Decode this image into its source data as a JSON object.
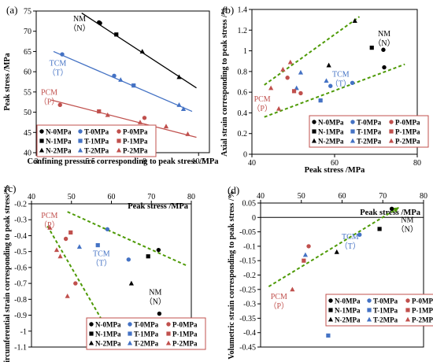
{
  "legend_labels": [
    "N-0MPa",
    "T-0MPa",
    "P-0MPa",
    "N-1MPa",
    "T-1MPa",
    "P-1MPa",
    "N-2MPa",
    "T-2MPa",
    "P-2MPa"
  ],
  "colors": {
    "N": "#000000",
    "T": "#4472c4",
    "P": "#c0504d",
    "fit_green": "#4e9a06"
  },
  "chart_data": [
    {
      "panel": "(a)",
      "type": "scatter",
      "xlabel": "Confining pressure corresponding to peak stress /MPa",
      "ylabel": "Peak stress /MPa",
      "xlim": [
        3,
        11
      ],
      "ylim": [
        40,
        75
      ],
      "xticks": [
        3,
        5.5,
        8,
        10.5
      ],
      "yticks": [
        40,
        45,
        50,
        55,
        60,
        65,
        70,
        75
      ],
      "annotations": [
        {
          "text": "NM",
          "sub": "（N）",
          "x": 5.0,
          "y": 72.5,
          "color": "#000000"
        },
        {
          "text": "TCM",
          "sub": "（T）",
          "x": 4.0,
          "y": 61.5,
          "color": "#4472c4"
        },
        {
          "text": "PCM",
          "sub": "（P）",
          "x": 3.6,
          "y": 54.3,
          "color": "#c0504d"
        }
      ],
      "fit_lines": [
        {
          "group": "N",
          "x": [
            5.1,
            10.4
          ],
          "y": [
            74.5,
            56.0
          ],
          "color": "#000000"
        },
        {
          "group": "T",
          "x": [
            3.8,
            10.2
          ],
          "y": [
            65.0,
            50.2
          ],
          "color": "#4472c4"
        },
        {
          "group": "P",
          "x": [
            3.7,
            10.4
          ],
          "y": [
            53.0,
            43.8
          ],
          "color": "#c0504d"
        }
      ],
      "series": [
        {
          "name": "N-0MPa",
          "x": [
            5.9,
            5.95
          ],
          "y": [
            72.2,
            72.0
          ]
        },
        {
          "name": "N-1MPa",
          "x": [
            6.7
          ],
          "y": [
            69.2
          ]
        },
        {
          "name": "N-2MPa",
          "x": [
            7.9,
            9.6
          ],
          "y": [
            65.0,
            58.7
          ]
        },
        {
          "name": "T-0MPa",
          "x": [
            4.2,
            6.6
          ],
          "y": [
            64.3,
            59.0
          ]
        },
        {
          "name": "T-1MPa",
          "x": [
            7.5
          ],
          "y": [
            56.6
          ]
        },
        {
          "name": "T-2MPa",
          "x": [
            6.9,
            9.6,
            9.8
          ],
          "y": [
            58.0,
            51.8,
            50.8
          ]
        },
        {
          "name": "P-0MPa",
          "x": [
            4.1,
            8.0
          ],
          "y": [
            51.8,
            48.6
          ]
        },
        {
          "name": "P-1MPa",
          "x": [
            5.9
          ],
          "y": [
            50.2
          ]
        },
        {
          "name": "P-2MPa",
          "x": [
            6.3,
            7.8,
            9.0,
            10.0
          ],
          "y": [
            49.3,
            47.5,
            46.5,
            44.6
          ]
        }
      ]
    },
    {
      "panel": "(b)",
      "type": "scatter",
      "xlabel": "Peak stress /MPa",
      "ylabel": "Axial strain corresponding to peak stress /%",
      "xlim": [
        40,
        80
      ],
      "ylim": [
        0,
        1.4
      ],
      "xticks": [
        40,
        60,
        80
      ],
      "yticks": [
        0,
        0.2,
        0.4,
        0.6,
        0.8,
        1,
        1.2,
        1.4
      ],
      "annotations": [
        {
          "text": "NM",
          "sub": "（N）",
          "x": 72,
          "y": 1.14,
          "color": "#000000"
        },
        {
          "text": "TCM",
          "sub": "（T）",
          "x": 61.5,
          "y": 0.75,
          "color": "#4472c4"
        },
        {
          "text": "PCM",
          "sub": "（P）",
          "x": 42.5,
          "y": 0.51,
          "color": "#c0504d"
        }
      ],
      "fit_lines": [
        {
          "group": "upper",
          "x": [
            43,
            66
          ],
          "y": [
            0.67,
            1.33
          ],
          "color": "#4e9a06"
        },
        {
          "group": "lower",
          "x": [
            43,
            77
          ],
          "y": [
            0.36,
            0.87
          ],
          "color": "#4e9a06"
        }
      ],
      "series": [
        {
          "name": "N-0MPa",
          "x": [
            71.8,
            72.0
          ],
          "y": [
            1.01,
            0.84
          ]
        },
        {
          "name": "N-1MPa",
          "x": [
            69.0
          ],
          "y": [
            1.03
          ]
        },
        {
          "name": "N-2MPa",
          "x": [
            58.6,
            64.9
          ],
          "y": [
            0.86,
            1.29
          ]
        },
        {
          "name": "T-0MPa",
          "x": [
            59.0,
            64.3
          ],
          "y": [
            0.66,
            0.69
          ]
        },
        {
          "name": "T-1MPa",
          "x": [
            56.6
          ],
          "y": [
            0.52
          ]
        },
        {
          "name": "T-2MPa",
          "x": [
            50.8,
            51.8,
            58.0
          ],
          "y": [
            0.64,
            0.79,
            0.71
          ]
        },
        {
          "name": "P-0MPa",
          "x": [
            48.6,
            51.8
          ],
          "y": [
            0.74,
            0.59
          ]
        },
        {
          "name": "P-1MPa",
          "x": [
            50.2
          ],
          "y": [
            0.61
          ]
        },
        {
          "name": "P-2MPa",
          "x": [
            44.6,
            46.5,
            47.5,
            49.3
          ],
          "y": [
            0.64,
            0.44,
            0.82,
            0.89
          ]
        }
      ]
    },
    {
      "panel": "(c)",
      "type": "scatter",
      "xlabel": "Peak stress /MPa",
      "ylabel": "circumferential strain corresponding to peak stress/%",
      "xlim": [
        40,
        80
      ],
      "ylim": [
        -1.1,
        -0.2
      ],
      "xaxis_position": "top",
      "xticks": [
        40,
        50,
        60,
        70,
        80
      ],
      "yticks": [
        -1.1,
        -1,
        -0.9,
        -0.8,
        -0.7,
        -0.6,
        -0.5,
        -0.4,
        -0.3,
        -0.2
      ],
      "annotations": [
        {
          "text": "NM",
          "sub": "（N）",
          "x": 71,
          "y": -0.77,
          "color": "#000000"
        },
        {
          "text": "TCM",
          "sub": "（T）",
          "x": 57.5,
          "y": -0.53,
          "color": "#4472c4"
        },
        {
          "text": "PCM",
          "sub": "（P）",
          "x": 44.5,
          "y": -0.29,
          "color": "#c0504d"
        }
      ],
      "fit_lines": [
        {
          "group": "upper",
          "x": [
            49,
            79
          ],
          "y": [
            -0.25,
            -0.59
          ],
          "color": "#4e9a06"
        },
        {
          "group": "lower",
          "x": [
            44,
            59
          ],
          "y": [
            -0.34,
            -0.99
          ],
          "color": "#4e9a06"
        }
      ],
      "series": [
        {
          "name": "N-0MPa",
          "x": [
            71.8,
            72.0
          ],
          "y": [
            -0.49,
            -0.89
          ]
        },
        {
          "name": "N-1MPa",
          "x": [
            69.2
          ],
          "y": [
            -0.53
          ]
        },
        {
          "name": "N-2MPa",
          "x": [
            58.7,
            65.0
          ],
          "y": [
            -0.99,
            -0.7
          ]
        },
        {
          "name": "T-0MPa",
          "x": [
            59.0,
            64.3
          ],
          "y": [
            -0.36,
            -0.55
          ]
        },
        {
          "name": "T-1MPa",
          "x": [
            56.6
          ],
          "y": [
            -0.46
          ]
        },
        {
          "name": "T-2MPa",
          "x": [
            52.0,
            58.0
          ],
          "y": [
            -0.47,
            -0.95
          ]
        },
        {
          "name": "P-0MPa",
          "x": [
            48.6,
            51.0
          ],
          "y": [
            -0.42,
            -0.7
          ]
        },
        {
          "name": "P-1MPa",
          "x": [
            49.8
          ],
          "y": [
            -0.38
          ]
        },
        {
          "name": "P-2MPa",
          "x": [
            44.6,
            46.3,
            47.2,
            49.0
          ],
          "y": [
            -0.35,
            -0.49,
            -0.53,
            -0.78
          ]
        }
      ]
    },
    {
      "panel": "(d)",
      "type": "scatter",
      "xlabel": "Peak stress /MPa",
      "ylabel": "Volumetric strain corresponding to peak stress /%",
      "xlim": [
        40,
        80
      ],
      "ylim": [
        -0.45,
        0.05
      ],
      "xaxis_position": "top",
      "xticks": [
        40,
        50,
        60,
        70,
        80
      ],
      "yticks": [
        -0.45,
        -0.4,
        -0.35,
        -0.3,
        -0.25,
        -0.2,
        -0.15,
        -0.1,
        -0.05,
        0,
        0.05
      ],
      "annotations": [
        {
          "text": "NM",
          "sub": "（N）",
          "x": 76,
          "y": -0.017,
          "color": "#000000"
        },
        {
          "text": "TCM",
          "sub": "（T）",
          "x": 62,
          "y": -0.075,
          "color": "#4472c4"
        },
        {
          "text": "PCM",
          "sub": "（P）",
          "x": 44.5,
          "y": -0.283,
          "color": "#c0504d"
        }
      ],
      "fit_lines": [
        {
          "group": "trend",
          "x": [
            42,
            74
          ],
          "y": [
            -0.24,
            0.035
          ],
          "color": "#4e9a06",
          "arrow": true
        }
      ],
      "series": [
        {
          "name": "N-0MPa",
          "x": [
            72.2
          ],
          "y": [
            0.03
          ]
        },
        {
          "name": "N-1MPa",
          "x": [
            69.2
          ],
          "y": [
            -0.04
          ]
        },
        {
          "name": "N-2MPa",
          "x": [
            58.7
          ],
          "y": [
            -0.12
          ]
        },
        {
          "name": "T-0MPa",
          "x": [
            64.3
          ],
          "y": [
            -0.06
          ]
        },
        {
          "name": "T-1MPa",
          "x": [
            56.6
          ],
          "y": [
            -0.41
          ]
        },
        {
          "name": "T-2MPa",
          "x": [
            51.0
          ],
          "y": [
            -0.13
          ]
        },
        {
          "name": "P-0MPa",
          "x": [
            51.8
          ],
          "y": [
            -0.1
          ]
        },
        {
          "name": "P-1MPa",
          "x": [
            50.6
          ],
          "y": [
            -0.15
          ]
        },
        {
          "name": "P-2MPa",
          "x": [
            47.8
          ],
          "y": [
            -0.25
          ]
        }
      ]
    }
  ]
}
